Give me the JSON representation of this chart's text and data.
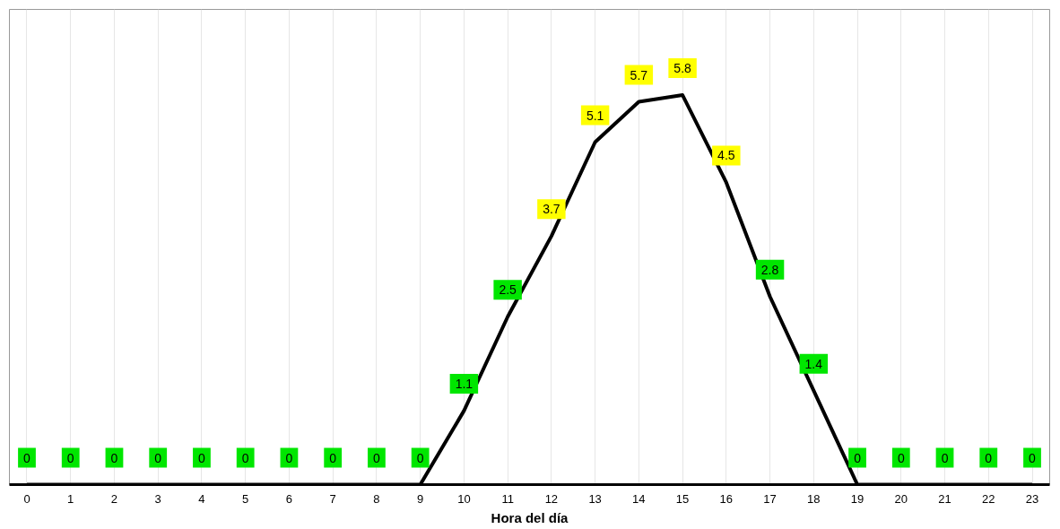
{
  "chart_data": {
    "type": "line",
    "xlabel": "Hora del día",
    "x": [
      0,
      1,
      2,
      3,
      4,
      5,
      6,
      7,
      8,
      9,
      10,
      11,
      12,
      13,
      14,
      15,
      16,
      17,
      18,
      19,
      20,
      21,
      22,
      23
    ],
    "xlim": [
      -0.4,
      23.4
    ],
    "xticks": [
      0,
      1,
      2,
      3,
      4,
      5,
      6,
      7,
      8,
      9,
      10,
      11,
      12,
      13,
      14,
      15,
      16,
      17,
      18,
      19,
      20,
      21,
      22,
      23
    ],
    "series": [
      {
        "color": "#000000",
        "values": [
          0,
          0,
          0,
          0,
          0,
          0,
          0,
          0,
          0,
          0,
          1.1,
          2.5,
          3.7,
          5.1,
          5.7,
          5.8,
          4.5,
          2.8,
          1.4,
          0,
          0,
          0,
          0,
          0
        ]
      }
    ],
    "colors": [
      "#00e600",
      "#00e600",
      "#00e600",
      "#00e600",
      "#00e600",
      "#00e600",
      "#00e600",
      "#00e600",
      "#00e600",
      "#00e600",
      "#00e600",
      "#00e600",
      "#ffff00",
      "#ffff00",
      "#ffff00",
      "#ffff00",
      "#ffff00",
      "#00e600",
      "#00e600",
      "#00e600",
      "#00e600",
      "#00e600",
      "#00e600",
      "#00e600"
    ],
    "data_labels": true,
    "grid": "x",
    "marker": "none",
    "line_style": "solid"
  }
}
